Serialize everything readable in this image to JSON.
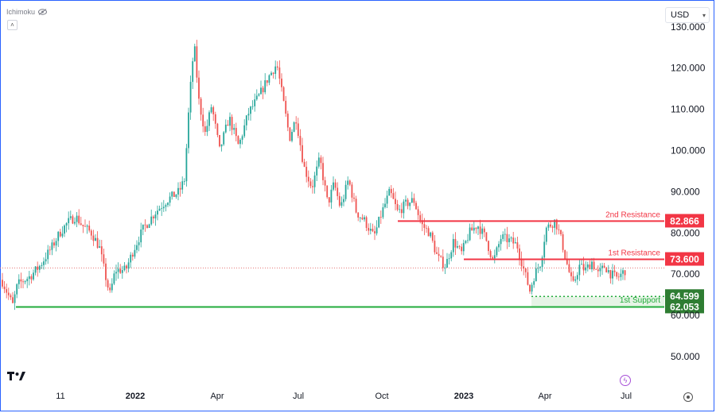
{
  "indicator": {
    "label": "Ichimoku",
    "icon": "eye-icon"
  },
  "collapse": {
    "icon": "chevron-up-icon",
    "glyph": "˄"
  },
  "currency": {
    "label": "USD",
    "icon": "caret-down-icon"
  },
  "colors": {
    "up": "#26a69a",
    "down": "#ef5350",
    "resistance": "#f23645",
    "support": "#22ab3b",
    "support_tag": "#2e7d32",
    "current_price_line": "#e57373",
    "support_zone": "#e6f4e6"
  },
  "chart_data": {
    "type": "candlestick",
    "symbol_unit": "USD",
    "y_axis": {
      "ticks": [
        "130.000",
        "120.000",
        "110.000",
        "100.000",
        "90.000",
        "80.000",
        "70.000",
        "60.000",
        "50.000"
      ],
      "range": [
        44,
        133
      ]
    },
    "x_axis": {
      "ticks": [
        {
          "label": "11",
          "bold": false
        },
        {
          "label": "2022",
          "bold": true
        },
        {
          "label": "Apr",
          "bold": false
        },
        {
          "label": "Jul",
          "bold": false
        },
        {
          "label": "Oct",
          "bold": false
        },
        {
          "label": "2023",
          "bold": true
        },
        {
          "label": "Apr",
          "bold": false
        },
        {
          "label": "Jul",
          "bold": false
        }
      ]
    },
    "price_path": [
      [
        0,
        69.5
      ],
      [
        8,
        66
      ],
      [
        16,
        62.5
      ],
      [
        22,
        67.5
      ],
      [
        38,
        69.5
      ],
      [
        50,
        72
      ],
      [
        65,
        76.5
      ],
      [
        75,
        80
      ],
      [
        85,
        82.5
      ],
      [
        95,
        84
      ],
      [
        105,
        81.5
      ],
      [
        115,
        80
      ],
      [
        125,
        76.5
      ],
      [
        132,
        70
      ],
      [
        138,
        65
      ],
      [
        145,
        71
      ],
      [
        158,
        71
      ],
      [
        168,
        76
      ],
      [
        180,
        81
      ],
      [
        195,
        85
      ],
      [
        210,
        88
      ],
      [
        225,
        90
      ],
      [
        232,
        93
      ],
      [
        238,
        112
      ],
      [
        244,
        126
      ],
      [
        250,
        112
      ],
      [
        258,
        104
      ],
      [
        266,
        111
      ],
      [
        276,
        100
      ],
      [
        288,
        108
      ],
      [
        300,
        101
      ],
      [
        312,
        109
      ],
      [
        325,
        113
      ],
      [
        338,
        118
      ],
      [
        348,
        121
      ],
      [
        356,
        112
      ],
      [
        364,
        103
      ],
      [
        372,
        108
      ],
      [
        382,
        96
      ],
      [
        392,
        91
      ],
      [
        402,
        98
      ],
      [
        412,
        87
      ],
      [
        420,
        92
      ],
      [
        428,
        86
      ],
      [
        438,
        93
      ],
      [
        448,
        85
      ],
      [
        458,
        83
      ],
      [
        470,
        79
      ],
      [
        480,
        85
      ],
      [
        490,
        90
      ],
      [
        500,
        85
      ],
      [
        510,
        87
      ],
      [
        520,
        88
      ],
      [
        530,
        82
      ],
      [
        540,
        80
      ],
      [
        550,
        74
      ],
      [
        560,
        72
      ],
      [
        570,
        78
      ],
      [
        580,
        75
      ],
      [
        590,
        80
      ],
      [
        600,
        82
      ],
      [
        610,
        79
      ],
      [
        620,
        73
      ],
      [
        630,
        79
      ],
      [
        642,
        78
      ],
      [
        650,
        77
      ],
      [
        660,
        70
      ],
      [
        666,
        66
      ],
      [
        672,
        70
      ],
      [
        680,
        73
      ],
      [
        686,
        81
      ],
      [
        692,
        82
      ],
      [
        698,
        83
      ],
      [
        706,
        78
      ],
      [
        712,
        73
      ],
      [
        720,
        67
      ],
      [
        728,
        72
      ],
      [
        736,
        71
      ],
      [
        744,
        73
      ],
      [
        752,
        70
      ],
      [
        760,
        72
      ],
      [
        768,
        70
      ],
      [
        776,
        69
      ],
      [
        786,
        71
      ]
    ],
    "levels": [
      {
        "name": "2nd Resistance",
        "value": 82.866,
        "label": "82.866",
        "kind": "resistance"
      },
      {
        "name": "1st Resistance",
        "value": 73.6,
        "label": "73.600",
        "kind": "resistance"
      },
      {
        "name": "1st Support",
        "value": 64.599,
        "label": "64.599",
        "kind": "support"
      },
      {
        "name": "",
        "value": 62.053,
        "label": "62.053",
        "kind": "support-base"
      }
    ],
    "current_price": 71.5
  },
  "logo": {
    "text": "TV"
  },
  "footer": {
    "bolt_icon": "lightning-icon",
    "bolt_glyph": "ϟ",
    "settings_icon": "gear-icon"
  }
}
